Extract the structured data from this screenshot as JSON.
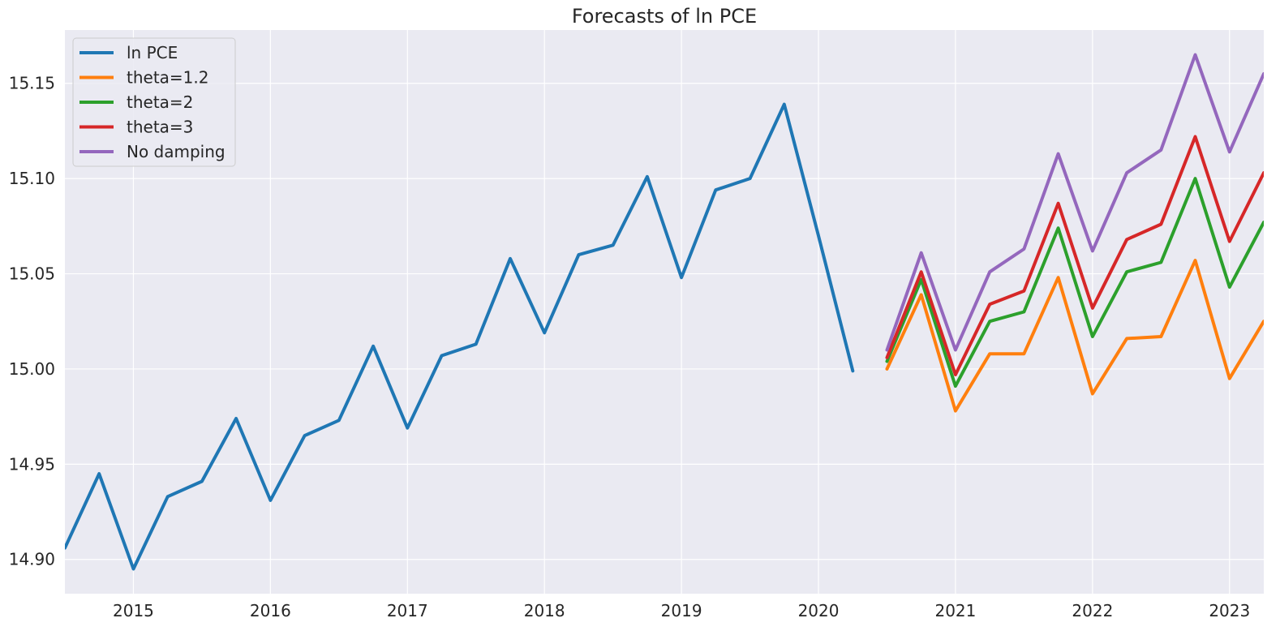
{
  "chart_data": {
    "type": "line",
    "title": "Forecasts of ln PCE",
    "xlabel": "",
    "ylabel": "",
    "xlim": [
      2014.5,
      2023.25
    ],
    "ylim": [
      14.882,
      15.178
    ],
    "x_ticks": [
      2015,
      2016,
      2017,
      2018,
      2019,
      2020,
      2021,
      2022,
      2023
    ],
    "x_tick_labels": [
      "2015",
      "2016",
      "2017",
      "2018",
      "2019",
      "2020",
      "2021",
      "2022",
      "2023"
    ],
    "y_ticks": [
      14.9,
      14.95,
      15.0,
      15.05,
      15.1,
      15.15
    ],
    "y_tick_labels": [
      "14.90",
      "14.95",
      "15.00",
      "15.05",
      "15.10",
      "15.15"
    ],
    "grid": true,
    "background": "#eaeaf2",
    "legend_position": "top-left",
    "series": [
      {
        "name": "ln PCE",
        "color": "#1f77b4",
        "x": [
          2014.5,
          2014.75,
          2015.0,
          2015.25,
          2015.5,
          2015.75,
          2016.0,
          2016.25,
          2016.5,
          2016.75,
          2017.0,
          2017.25,
          2017.5,
          2017.75,
          2018.0,
          2018.25,
          2018.5,
          2018.75,
          2019.0,
          2019.25,
          2019.5,
          2019.75,
          2020.0,
          2020.25
        ],
        "values": [
          14.906,
          14.945,
          14.895,
          14.933,
          14.941,
          14.974,
          14.931,
          14.965,
          14.973,
          15.012,
          14.969,
          15.007,
          15.013,
          15.058,
          15.019,
          15.06,
          15.065,
          15.101,
          15.048,
          15.094,
          15.1,
          15.139,
          15.07,
          14.999
        ]
      },
      {
        "name": "theta=1.2",
        "color": "#ff7f0e",
        "x": [
          2020.5,
          2020.75,
          2021.0,
          2021.25,
          2021.5,
          2021.75,
          2022.0,
          2022.25,
          2022.5,
          2022.75,
          2023.0,
          2023.25
        ],
        "values": [
          15.0,
          15.039,
          14.978,
          15.008,
          15.008,
          15.048,
          14.987,
          15.016,
          15.017,
          15.057,
          14.995,
          15.025
        ]
      },
      {
        "name": "theta=2",
        "color": "#2ca02c",
        "x": [
          2020.5,
          2020.75,
          2021.0,
          2021.25,
          2021.5,
          2021.75,
          2022.0,
          2022.25,
          2022.5,
          2022.75,
          2023.0,
          2023.25
        ],
        "values": [
          15.004,
          15.047,
          14.991,
          15.025,
          15.03,
          15.074,
          15.017,
          15.051,
          15.056,
          15.1,
          15.043,
          15.077
        ]
      },
      {
        "name": "theta=3",
        "color": "#d62728",
        "x": [
          2020.5,
          2020.75,
          2021.0,
          2021.25,
          2021.5,
          2021.75,
          2022.0,
          2022.25,
          2022.5,
          2022.75,
          2023.0,
          2023.25
        ],
        "values": [
          15.006,
          15.051,
          14.997,
          15.034,
          15.041,
          15.087,
          15.032,
          15.068,
          15.076,
          15.122,
          15.067,
          15.103
        ]
      },
      {
        "name": "No damping",
        "color": "#9467bd",
        "x": [
          2020.5,
          2020.75,
          2021.0,
          2021.25,
          2021.5,
          2021.75,
          2022.0,
          2022.25,
          2022.5,
          2022.75,
          2023.0,
          2023.25
        ],
        "values": [
          15.01,
          15.061,
          15.01,
          15.051,
          15.063,
          15.113,
          15.062,
          15.103,
          15.115,
          15.165,
          15.114,
          15.155
        ]
      }
    ]
  }
}
